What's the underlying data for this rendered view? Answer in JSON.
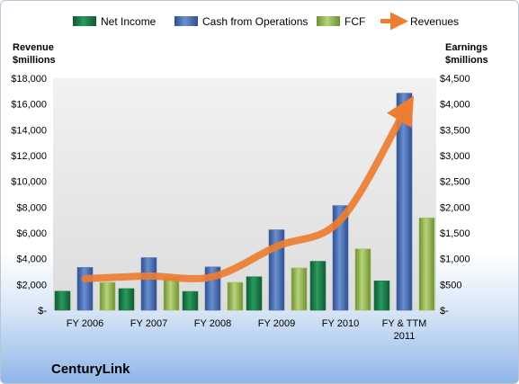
{
  "chart_data": {
    "type": "bar",
    "company_label": "CenturyLink",
    "categories": [
      "FY 2006",
      "FY 2007",
      "FY 2008",
      "FY 2009",
      "FY 2010",
      "FY & TTM\n2011"
    ],
    "series": [
      {
        "name": "Net Income",
        "type": "bar",
        "axis": "right",
        "color": "#1e7d4e",
        "values": [
          370,
          420,
          365,
          650,
          950,
          570
        ]
      },
      {
        "name": "Cash from Operations",
        "type": "bar",
        "axis": "right",
        "color": "#4a6fb5",
        "values": [
          830,
          1020,
          840,
          1560,
          2030,
          4210
        ]
      },
      {
        "name": "FCF",
        "type": "bar",
        "axis": "right",
        "color": "#9dbe5b",
        "values": [
          540,
          650,
          540,
          820,
          1190,
          1790
        ]
      },
      {
        "name": "Revenues",
        "type": "line",
        "axis": "left",
        "color": "#ed7d31",
        "values": [
          2450,
          2650,
          2600,
          4950,
          7000,
          15400
        ]
      }
    ],
    "left_axis": {
      "title": [
        "Revenue",
        "$millions"
      ],
      "range": [
        0,
        18000
      ],
      "tick_labels": [
        "$-",
        "$2,000",
        "$4,000",
        "$6,000",
        "$8,000",
        "$10,000",
        "$12,000",
        "$14,000",
        "$16,000",
        "$18,000"
      ]
    },
    "right_axis": {
      "title": [
        "Earnings",
        "$millions"
      ],
      "range": [
        0,
        4500
      ],
      "tick_labels": [
        "$-",
        "$500",
        "$1,000",
        "$1,500",
        "$2,000",
        "$2,500",
        "$3,000",
        "$3,500",
        "$4,000",
        "$4,500"
      ]
    },
    "plot_background": "#e8e8e8",
    "grid": false,
    "legend_position": "top"
  }
}
